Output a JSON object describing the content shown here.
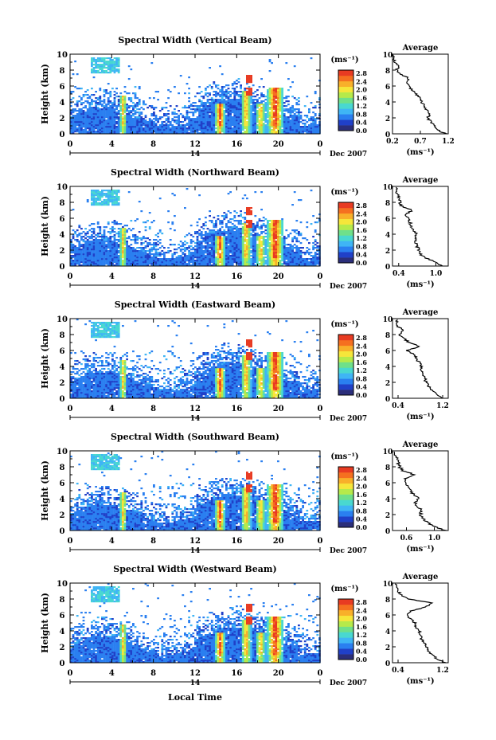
{
  "figure": {
    "bottom_xlabel": "Local Time",
    "date_label": "Dec 2007",
    "day_label": "14"
  },
  "colorbar": {
    "unit_label": "(ms⁻¹)",
    "ticks": [
      "0.0",
      "0.4",
      "0.8",
      "1.2",
      "1.6",
      "2.0",
      "2.4",
      "2.8"
    ],
    "colors": [
      "#2b2e7a",
      "#2040c8",
      "#2a7ff0",
      "#3fb5f5",
      "#49d8d0",
      "#6fe08a",
      "#b6ea4a",
      "#f6e63a",
      "#f8b02a",
      "#f57020",
      "#e83b22"
    ]
  },
  "chart_data": [
    {
      "type": "heatmap",
      "title": "Spectral Width (Vertical Beam)",
      "ylabel": "Height (km)",
      "x_ticks": [
        "0",
        "4",
        "8",
        "12",
        "16",
        "20",
        "0"
      ],
      "y_ticks": [
        "0",
        "2",
        "4",
        "6",
        "8",
        "10"
      ],
      "xlim": [
        0,
        24
      ],
      "ylim": [
        0,
        10
      ],
      "avg": {
        "title": "Average",
        "xlabel": "(ms⁻¹)",
        "x_ticks": [
          "0.2",
          "0.7",
          "1.2"
        ],
        "xlim": [
          0.2,
          1.2
        ],
        "profile": [
          [
            0,
            1.15
          ],
          [
            0.5,
            1.0
          ],
          [
            1,
            0.95
          ],
          [
            1.5,
            0.9
          ],
          [
            2,
            0.82
          ],
          [
            2.5,
            0.88
          ],
          [
            3,
            0.8
          ],
          [
            3.5,
            0.78
          ],
          [
            4,
            0.72
          ],
          [
            4.5,
            0.7
          ],
          [
            5,
            0.62
          ],
          [
            5.5,
            0.55
          ],
          [
            6,
            0.5
          ],
          [
            6.5,
            0.45
          ],
          [
            7,
            0.48
          ],
          [
            7.5,
            0.35
          ],
          [
            8,
            0.28
          ],
          [
            8.5,
            0.3
          ],
          [
            9,
            0.24
          ],
          [
            9.5,
            0.22
          ],
          [
            10,
            0.2
          ]
        ]
      }
    },
    {
      "type": "heatmap",
      "title": "Spectral Width (Northward Beam)",
      "ylabel": "Height (km)",
      "x_ticks": [
        "0",
        "4",
        "8",
        "12",
        "16",
        "20",
        "0"
      ],
      "y_ticks": [
        "0",
        "2",
        "4",
        "6",
        "8",
        "10"
      ],
      "xlim": [
        0,
        24
      ],
      "ylim": [
        0,
        10
      ],
      "avg": {
        "title": "Average",
        "xlabel": "(ms⁻¹)",
        "x_ticks": [
          "0.4",
          "1.0"
        ],
        "xlim": [
          0.3,
          1.2
        ],
        "profile": [
          [
            0,
            1.1
          ],
          [
            0.5,
            1.0
          ],
          [
            1,
            0.85
          ],
          [
            1.5,
            0.75
          ],
          [
            2,
            0.72
          ],
          [
            2.5,
            0.7
          ],
          [
            3,
            0.68
          ],
          [
            3.5,
            0.66
          ],
          [
            4,
            0.7
          ],
          [
            4.5,
            0.64
          ],
          [
            5,
            0.6
          ],
          [
            5.5,
            0.58
          ],
          [
            6,
            0.55
          ],
          [
            6.5,
            0.5
          ],
          [
            7,
            0.62
          ],
          [
            7.5,
            0.45
          ],
          [
            8,
            0.42
          ],
          [
            8.5,
            0.4
          ],
          [
            9,
            0.38
          ],
          [
            9.5,
            0.36
          ],
          [
            10,
            0.35
          ]
        ]
      }
    },
    {
      "type": "heatmap",
      "title": "Spectral Width (Eastward Beam)",
      "ylabel": "Height (km)",
      "x_ticks": [
        "0",
        "4",
        "8",
        "12",
        "16",
        "20",
        "0"
      ],
      "y_ticks": [
        "0",
        "2",
        "4",
        "6",
        "8",
        "10"
      ],
      "xlim": [
        0,
        24
      ],
      "ylim": [
        0,
        10
      ],
      "avg": {
        "title": "Average",
        "xlabel": "(ms⁻¹)",
        "x_ticks": [
          "0.4",
          "1.2"
        ],
        "xlim": [
          0.3,
          1.3
        ],
        "profile": [
          [
            0,
            1.2
          ],
          [
            0.5,
            1.1
          ],
          [
            1,
            1.0
          ],
          [
            1.5,
            0.95
          ],
          [
            2,
            0.9
          ],
          [
            2.5,
            0.88
          ],
          [
            3,
            0.85
          ],
          [
            3.5,
            0.8
          ],
          [
            4,
            0.82
          ],
          [
            4.5,
            0.78
          ],
          [
            5,
            0.72
          ],
          [
            5.5,
            0.7
          ],
          [
            6,
            0.55
          ],
          [
            6.5,
            0.8
          ],
          [
            7,
            0.6
          ],
          [
            7.5,
            0.5
          ],
          [
            8,
            0.42
          ],
          [
            8.5,
            0.5
          ],
          [
            9,
            0.4
          ],
          [
            9.5,
            0.38
          ],
          [
            10,
            0.35
          ]
        ]
      }
    },
    {
      "type": "heatmap",
      "title": "Spectral Width (Southward Beam)",
      "ylabel": "Height (km)",
      "x_ticks": [
        "0",
        "4",
        "8",
        "12",
        "16",
        "20",
        "0"
      ],
      "y_ticks": [
        "0",
        "2",
        "4",
        "6",
        "8",
        "10"
      ],
      "xlim": [
        0,
        24
      ],
      "ylim": [
        0,
        10
      ],
      "avg": {
        "title": "Average",
        "xlabel": "(ms⁻¹)",
        "x_ticks": [
          "0.6",
          "1.0"
        ],
        "xlim": [
          0.4,
          1.2
        ],
        "profile": [
          [
            0,
            1.15
          ],
          [
            0.5,
            1.0
          ],
          [
            1,
            0.9
          ],
          [
            1.5,
            0.85
          ],
          [
            2,
            0.8
          ],
          [
            2.5,
            0.82
          ],
          [
            3,
            0.75
          ],
          [
            3.5,
            0.72
          ],
          [
            4,
            0.78
          ],
          [
            4.5,
            0.7
          ],
          [
            5,
            0.66
          ],
          [
            5.5,
            0.62
          ],
          [
            6,
            0.6
          ],
          [
            6.5,
            0.58
          ],
          [
            7,
            0.72
          ],
          [
            7.5,
            0.55
          ],
          [
            8,
            0.5
          ],
          [
            8.5,
            0.48
          ],
          [
            9,
            0.46
          ],
          [
            9.5,
            0.44
          ],
          [
            10,
            0.42
          ]
        ]
      }
    },
    {
      "type": "heatmap",
      "title": "Spectral Width (Westward Beam)",
      "ylabel": "Height (km)",
      "x_ticks": [
        "0",
        "4",
        "8",
        "12",
        "16",
        "20",
        "0"
      ],
      "y_ticks": [
        "0",
        "2",
        "4",
        "6",
        "8",
        "10"
      ],
      "xlim": [
        0,
        24
      ],
      "ylim": [
        0,
        10
      ],
      "avg": {
        "title": "Average",
        "xlabel": "(ms⁻¹)",
        "x_ticks": [
          "0.4",
          "1.2"
        ],
        "xlim": [
          0.3,
          1.3
        ],
        "profile": [
          [
            0,
            1.25
          ],
          [
            0.5,
            1.1
          ],
          [
            1,
            1.0
          ],
          [
            1.5,
            0.95
          ],
          [
            2,
            0.9
          ],
          [
            2.5,
            0.88
          ],
          [
            3,
            0.82
          ],
          [
            3.5,
            0.8
          ],
          [
            4,
            0.78
          ],
          [
            4.5,
            0.72
          ],
          [
            5,
            0.7
          ],
          [
            5.5,
            0.62
          ],
          [
            6,
            0.55
          ],
          [
            6.5,
            0.62
          ],
          [
            7,
            0.9
          ],
          [
            7.5,
            1.0
          ],
          [
            8,
            0.6
          ],
          [
            8.5,
            0.45
          ],
          [
            9,
            0.4
          ],
          [
            9.5,
            0.38
          ],
          [
            10,
            0.35
          ]
        ]
      }
    }
  ]
}
